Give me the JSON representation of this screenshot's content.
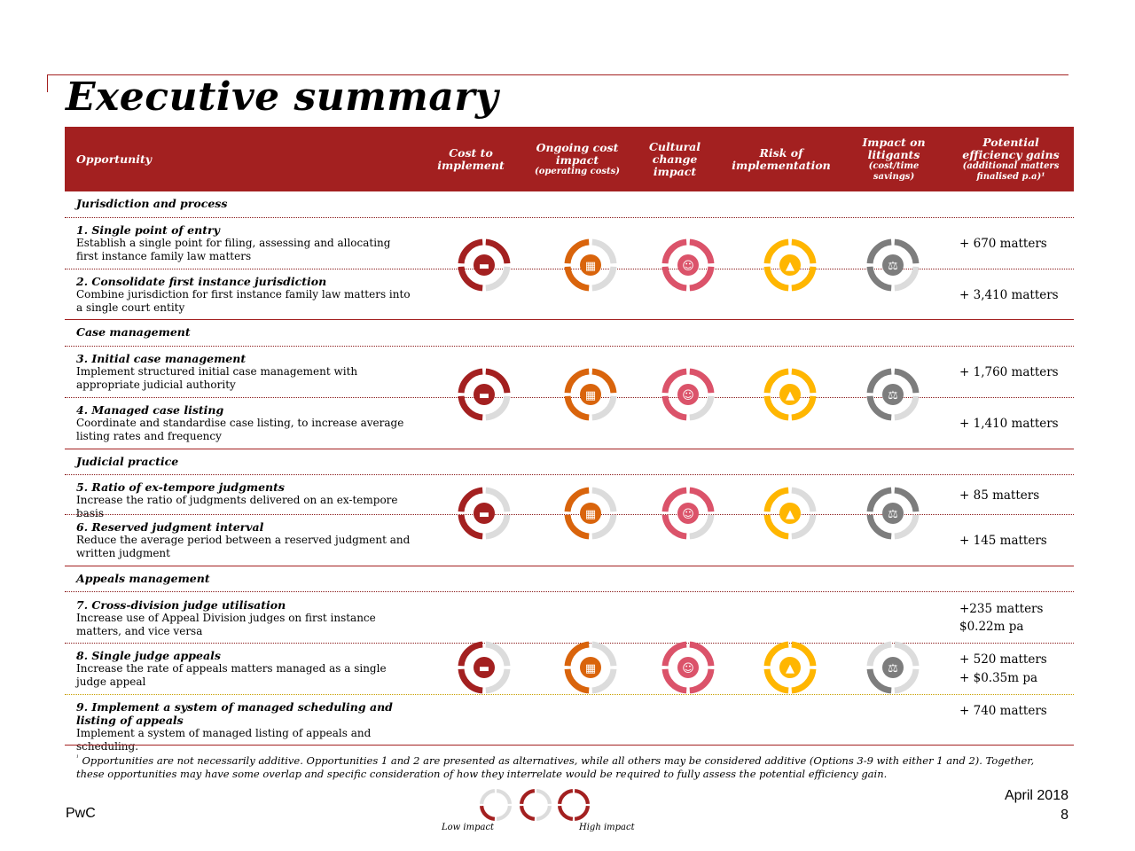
{
  "title": "Executive summary",
  "header": {
    "opportunity": "Opportunity",
    "cost": "Cost to implement",
    "ongoing": "Ongoing cost impact",
    "ongoing_sub": "(operating costs)",
    "cultural": "Cultural change impact",
    "risk": "Risk of implementation",
    "litigants": "Impact on litigants",
    "litigants_sub": "(cost/time savings)",
    "gains": "Potential efficiency gains",
    "gains_sub": "(additional matters finalised p.a)¹"
  },
  "sections": {
    "s1": "Jurisdiction and process",
    "s2": "Case management",
    "s3": "Judicial practice",
    "s4": "Appeals management"
  },
  "rows": [
    {
      "title": "1. Single point of entry",
      "desc": "Establish a single point for filing, assessing and allocating first instance family law matters",
      "gain": "+ 670 matters"
    },
    {
      "title": "2. Consolidate first instance jurisdiction",
      "desc": "Combine jurisdiction for first instance family law matters into a single court entity",
      "gain": "+ 3,410 matters"
    },
    {
      "title": "3. Initial case management",
      "desc": "Implement structured initial case management with appropriate judicial authority",
      "gain": "+ 1,760 matters"
    },
    {
      "title": "4. Managed case listing",
      "desc": "Coordinate and standardise case listing, to increase average listing rates and frequency",
      "gain": "+ 1,410 matters"
    },
    {
      "title": "5. Ratio of ex-tempore judgments",
      "desc": "Increase the ratio of judgments delivered on an ex-tempore basis",
      "gain": "+ 85 matters"
    },
    {
      "title": "6. Reserved judgment interval",
      "desc": "Reduce the average period between a reserved judgment and written judgment",
      "gain": "+ 145 matters"
    },
    {
      "title": "7. Cross-division judge utilisation",
      "desc": "Increase use of Appeal Division judges on first instance matters, and vice versa",
      "gain": "+235 matters",
      "gain2": "$0.22m pa"
    },
    {
      "title": "8. Single judge appeals",
      "desc": "Increase the rate of appeals matters managed as a single judge appeal",
      "gain": "+ 520 matters",
      "gain2": "+ $0.35m pa"
    },
    {
      "title": "9.   Implement a system of managed scheduling and listing of appeals",
      "desc": "Implement a system of managed listing of appeals and scheduling.",
      "gain": "+ 740 matters"
    }
  ],
  "ratings": [
    {
      "cost": 3,
      "ongoing": 2,
      "cultural": 4,
      "risk": 4,
      "litigants": 3
    },
    {
      "cost": 3,
      "ongoing": 3,
      "cultural": 3,
      "risk": 4,
      "litigants": 3
    },
    {
      "cost": 2,
      "ongoing": 2,
      "cultural": 3,
      "risk": 2,
      "litigants": 3
    },
    {
      "cost": 2,
      "ongoing": 2,
      "cultural": 4,
      "risk": 4,
      "litigants": 1
    }
  ],
  "icons": {
    "cost": "cash-register-icon",
    "ongoing": "calculator-icon",
    "cultural": "people-icon",
    "risk": "traffic-cone-icon",
    "litigants": "scales-icon"
  },
  "colors": {
    "cost": "#a32020",
    "ongoing": "#d9640c",
    "cultural": "#db536a",
    "risk": "#ffb600",
    "litigants": "#7d7d7d",
    "empty": "#dcdcdc",
    "brand": "#a32020"
  },
  "footnote_mark": "¹",
  "footnote": "Opportunities are not necessarily additive. Opportunities 1 and 2 are presented as alternatives, while all others may be considered additive (Options 3-9 with either 1 and 2). Together, these opportunities may have some overlap and specific consideration of how they interrelate would be required to fully assess the potential efficiency gain.",
  "footer": {
    "brand": "PwC",
    "date": "April 2018",
    "page": "8"
  },
  "legend": {
    "low": "Low impact",
    "high": "High impact",
    "levels": [
      1,
      2,
      4
    ]
  }
}
